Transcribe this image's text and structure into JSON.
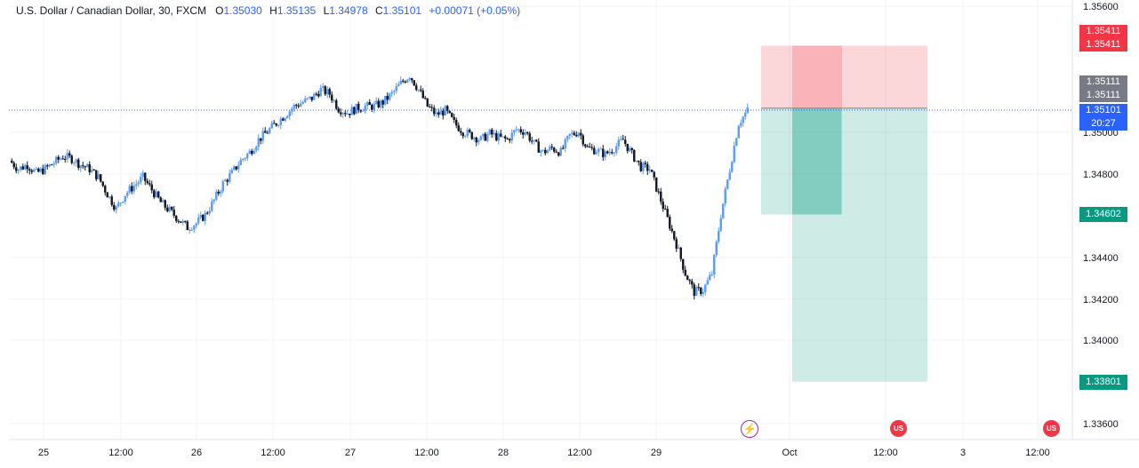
{
  "header": {
    "symbol": "U.S. Dollar / Canadian Dollar, 30, FXCM",
    "o_label": "O",
    "o_value": "1.35030",
    "h_label": "H",
    "h_value": "1.35135",
    "l_label": "L",
    "l_value": "1.34978",
    "c_label": "C",
    "c_value": "1.35101",
    "change": "+0.00071 (+0.05%)"
  },
  "price_tags": {
    "stop_top": "1.35411",
    "stop_bottom": "1.35411",
    "entry_top": "1.35111",
    "entry_bottom": "1.35111",
    "last_price": "1.35101",
    "countdown": "20:27",
    "target1": "1.34602",
    "target2": "1.33801"
  },
  "events": [
    {
      "name": "lightning-event-icon",
      "glyph": "⚡",
      "color": "#9c27b0"
    },
    {
      "name": "us-flag-event-icon",
      "glyph": "US",
      "color": "#f23645"
    },
    {
      "name": "us-flag-event-icon-2",
      "glyph": "US",
      "color": "#f23645"
    }
  ],
  "colors": {
    "up": "#5b9cf6",
    "down": "#131722",
    "stop_zone": "rgba(242,54,69,0.2)",
    "stop_zone_inner": "rgba(242,54,69,0.22)",
    "target_zone": "rgba(8,153,129,0.2)",
    "target_zone_inner": "rgba(8,153,129,0.22)",
    "price_line": "#2962ff",
    "grid": "#f0f3fa"
  },
  "chart_data": {
    "type": "candlestick",
    "title": "U.S. Dollar / Canadian Dollar, 30, FXCM",
    "y_axis": {
      "ticks": [
        "1.35600",
        "1.35000",
        "1.34800",
        "1.34400",
        "1.34200",
        "1.34000",
        "1.33600"
      ],
      "range": [
        1.3356,
        1.3562
      ]
    },
    "x_axis": {
      "ticks": [
        "25",
        "12:00",
        "26",
        "12:00",
        "27",
        "12:00",
        "28",
        "12:00",
        "29",
        "Oct",
        "12:00",
        "3",
        "12:00"
      ]
    },
    "close_path": [
      1.3486,
      1.3482,
      1.3484,
      1.348,
      1.3482,
      1.3485,
      1.3488,
      1.3487,
      1.3484,
      1.3482,
      1.3478,
      1.347,
      1.3463,
      1.347,
      1.3474,
      1.3478,
      1.3472,
      1.3466,
      1.3462,
      1.3458,
      1.3454,
      1.3456,
      1.346,
      1.3467,
      1.3475,
      1.348,
      1.3486,
      1.349,
      1.3496,
      1.35,
      1.3504,
      1.3508,
      1.3512,
      1.3514,
      1.3516,
      1.352,
      1.3518,
      1.3511,
      1.3509,
      1.3511,
      1.3512,
      1.3512,
      1.3514,
      1.3518,
      1.3523,
      1.3527,
      1.352,
      1.3512,
      1.3508,
      1.351,
      1.3504,
      1.35,
      1.3498,
      1.3496,
      1.3499,
      1.3497,
      1.3496,
      1.3501,
      1.35,
      1.3494,
      1.349,
      1.3492,
      1.349,
      1.3498,
      1.35,
      1.3492,
      1.3491,
      1.3489,
      1.3492,
      1.3496,
      1.3489,
      1.3483,
      1.3482,
      1.347,
      1.3458,
      1.3446,
      1.3432,
      1.3423,
      1.3424,
      1.3432,
      1.346,
      1.3482,
      1.3504,
      1.351
    ],
    "price_tags": [
      "1.35411",
      "1.35111",
      "1.35101",
      "1.34602",
      "1.33801"
    ]
  }
}
